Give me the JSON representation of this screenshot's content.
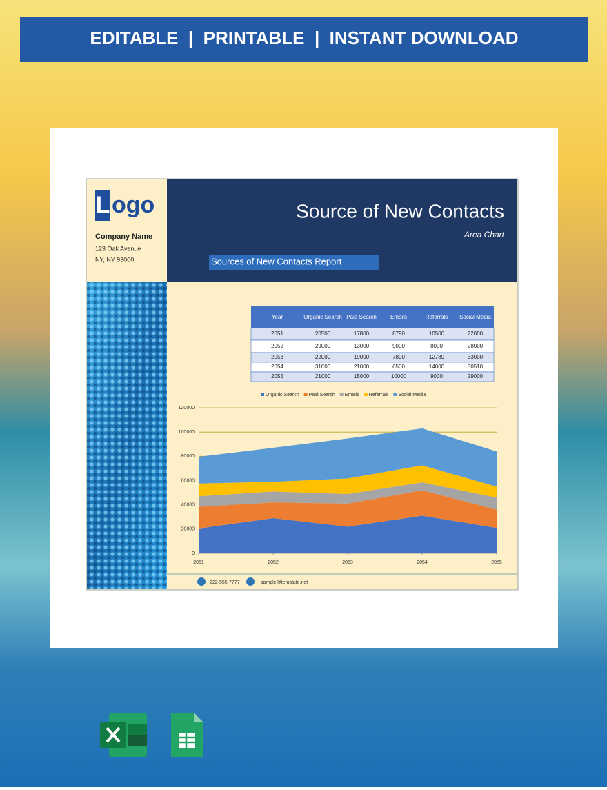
{
  "banner": {
    "text": "EDITABLE  |  PRINTABLE  |  INSTANT DOWNLOAD"
  },
  "logo": {
    "letter": "L",
    "rest": "ogo"
  },
  "company": {
    "name": "Company Name",
    "address1": "123 Oak Avenue",
    "address2": "NY, NY 93000"
  },
  "header": {
    "title": "Source of New Contacts",
    "subtitle": "Area Chart",
    "report": "Sources of New Contacts Report"
  },
  "table": {
    "columns": [
      "Year",
      "Organic Search",
      "Paid Search",
      "Emails",
      "Referrals",
      "Social Media"
    ],
    "rows": [
      [
        2051,
        20500,
        17800,
        8790,
        10500,
        22000
      ],
      [
        2052,
        29000,
        13000,
        9000,
        8000,
        28000
      ],
      [
        2053,
        22000,
        19000,
        7890,
        12789,
        33000
      ],
      [
        2054,
        31000,
        21000,
        6500,
        14000,
        30510
      ],
      [
        2055,
        21000,
        15000,
        10000,
        9000,
        29000
      ]
    ]
  },
  "chart_data": {
    "type": "area",
    "stacked": true,
    "grid": true,
    "legend": "top",
    "x": [
      2051,
      2052,
      2053,
      2054,
      2055
    ],
    "xlim": [
      2051,
      2055
    ],
    "xticks": [
      2051,
      2052,
      2053,
      2054,
      2055
    ],
    "ylim": [
      0,
      120000
    ],
    "yticks": [
      0,
      20000,
      40000,
      60000,
      80000,
      100000,
      120000
    ],
    "series": [
      {
        "name": "Organic Search",
        "color": "#4472c4",
        "values": [
          20500,
          29000,
          22000,
          31000,
          21000
        ]
      },
      {
        "name": "Paid Search",
        "color": "#ed7d31",
        "values": [
          17800,
          13000,
          19000,
          21000,
          15000
        ]
      },
      {
        "name": "Emails",
        "color": "#a5a5a5",
        "values": [
          8790,
          9000,
          7890,
          6500,
          10000
        ]
      },
      {
        "name": "Referrals",
        "color": "#ffc000",
        "values": [
          10500,
          8000,
          12789,
          14000,
          9000
        ]
      },
      {
        "name": "Social Media",
        "color": "#5b9bd5",
        "values": [
          22000,
          28000,
          33000,
          30510,
          29000
        ]
      }
    ]
  },
  "footer": {
    "phone": "222-555-7777",
    "email": "sample@template.net"
  }
}
